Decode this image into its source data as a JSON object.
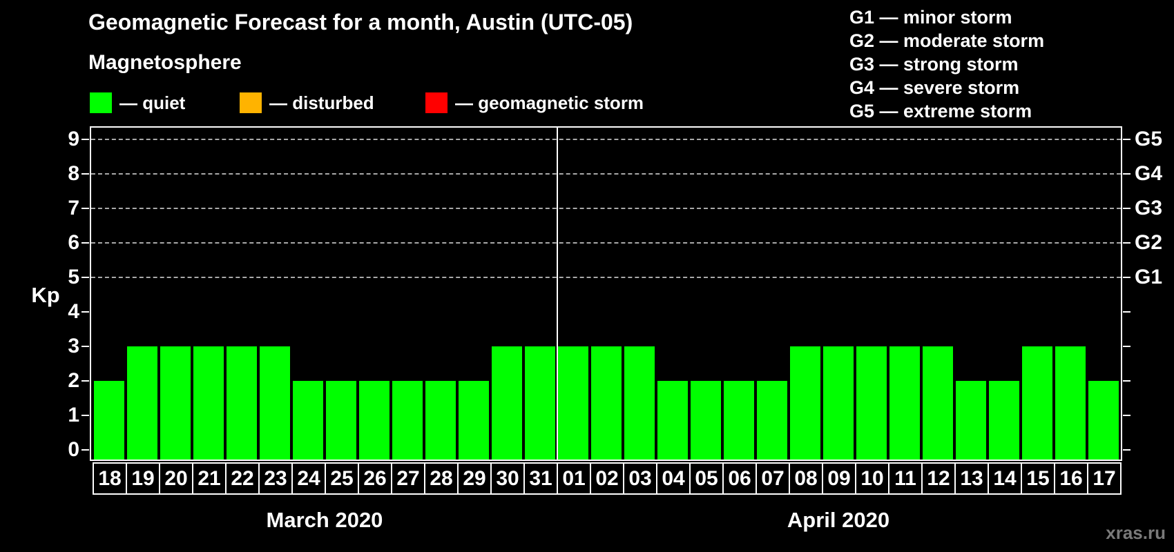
{
  "title": "Geomagnetic Forecast for a month, Austin (UTC-05)",
  "magnetosphere_legend": {
    "heading": "Magnetosphere",
    "items": [
      {
        "name": "quiet",
        "label": "— quiet",
        "color": "#00ff00"
      },
      {
        "name": "disturbed",
        "label": "— disturbed",
        "color": "#ffb300"
      },
      {
        "name": "geomagnetic-storm",
        "label": "— geomagnetic storm",
        "color": "#ff0000"
      }
    ]
  },
  "storm_scale_legend": [
    "G1 — minor storm",
    "G2 — moderate storm",
    "G3 — strong storm",
    "G4 — severe storm",
    "G5 — extreme storm"
  ],
  "watermark": "xras.ru",
  "chart_data": {
    "type": "bar",
    "ylabel": "Kp",
    "ylim": [
      -0.32,
      9.38
    ],
    "yticks": [
      0,
      1,
      2,
      3,
      4,
      5,
      6,
      7,
      8,
      9
    ],
    "gridlines_at": [
      5,
      6,
      7,
      8,
      9
    ],
    "grid_on": true,
    "legend_position": "top",
    "bar_color": "#00ff00",
    "grid_color": "#aaaaaa",
    "right_axis": [
      {
        "label": "G1",
        "kp": 5
      },
      {
        "label": "G2",
        "kp": 6
      },
      {
        "label": "G3",
        "kp": 7
      },
      {
        "label": "G4",
        "kp": 8
      },
      {
        "label": "G5",
        "kp": 9
      }
    ],
    "months": [
      {
        "label": "March 2020",
        "categories": [
          "18",
          "19",
          "20",
          "21",
          "22",
          "23",
          "24",
          "25",
          "26",
          "27",
          "28",
          "29",
          "30",
          "31"
        ],
        "values": [
          2,
          3,
          3,
          3,
          3,
          3,
          2,
          2,
          2,
          2,
          2,
          2,
          3,
          3
        ]
      },
      {
        "label": "April 2020",
        "categories": [
          "01",
          "02",
          "03",
          "04",
          "05",
          "06",
          "07",
          "08",
          "09",
          "10",
          "11",
          "12",
          "13",
          "14",
          "15",
          "16",
          "17"
        ],
        "values": [
          3,
          3,
          3,
          2,
          2,
          2,
          2,
          3,
          3,
          3,
          3,
          3,
          2,
          2,
          3,
          3,
          2
        ]
      }
    ]
  }
}
